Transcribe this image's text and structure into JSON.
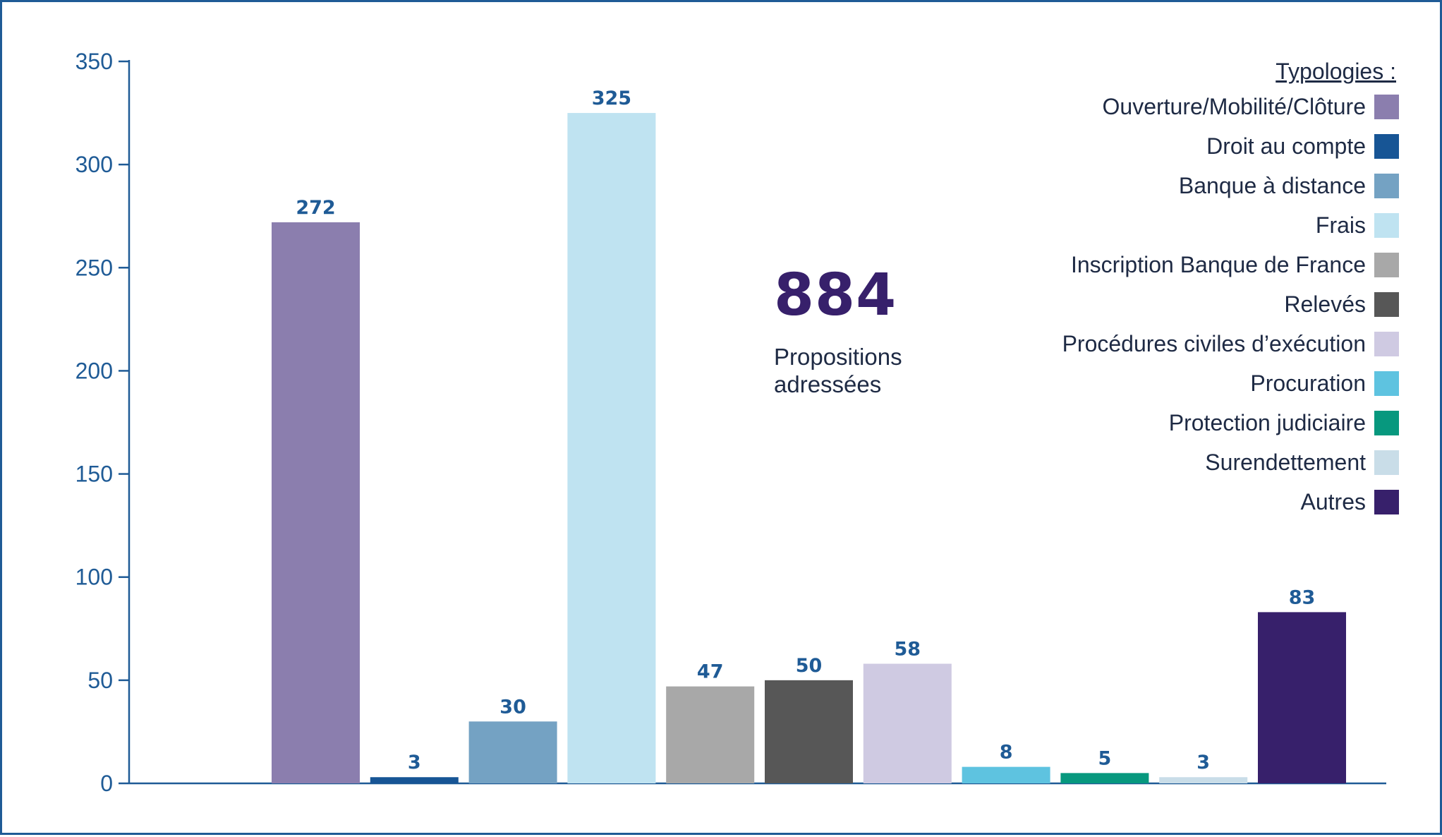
{
  "chart_data": {
    "type": "bar",
    "categories": [
      "Ouverture/Mobilité/Clôture",
      "Droit au compte",
      "Banque à distance",
      "Frais",
      "Inscription Banque de France",
      "Relevés",
      "Procédures civiles d’exécution",
      "Procuration",
      "Protection judiciaire",
      "Surendettement",
      "Autres"
    ],
    "values": [
      272,
      3,
      30,
      325,
      47,
      50,
      58,
      8,
      5,
      3,
      83
    ],
    "value_labels": [
      "272",
      "3",
      "30",
      "325",
      "47",
      "50",
      "58",
      "8",
      "5",
      "3",
      "83"
    ],
    "colors": [
      "#8b7eae",
      "#175595",
      "#74a2c3",
      "#bfe3f1",
      "#a8a8a8",
      "#575757",
      "#cfcae2",
      "#5ec3e0",
      "#07987e",
      "#c9dde8",
      "#37206b"
    ],
    "ylim": [
      0,
      350
    ],
    "yticks": [
      "0",
      "50",
      "100",
      "150",
      "200",
      "250",
      "300",
      "350"
    ],
    "ytick_values": [
      0,
      50,
      100,
      150,
      200,
      250,
      300,
      350
    ],
    "axis_color": "#1f5b96",
    "legend_title": "Typologies :",
    "legend_placement": "top-right"
  },
  "summary": {
    "total": "884",
    "caption_line1": "Propositions",
    "caption_line2": "adressées"
  }
}
